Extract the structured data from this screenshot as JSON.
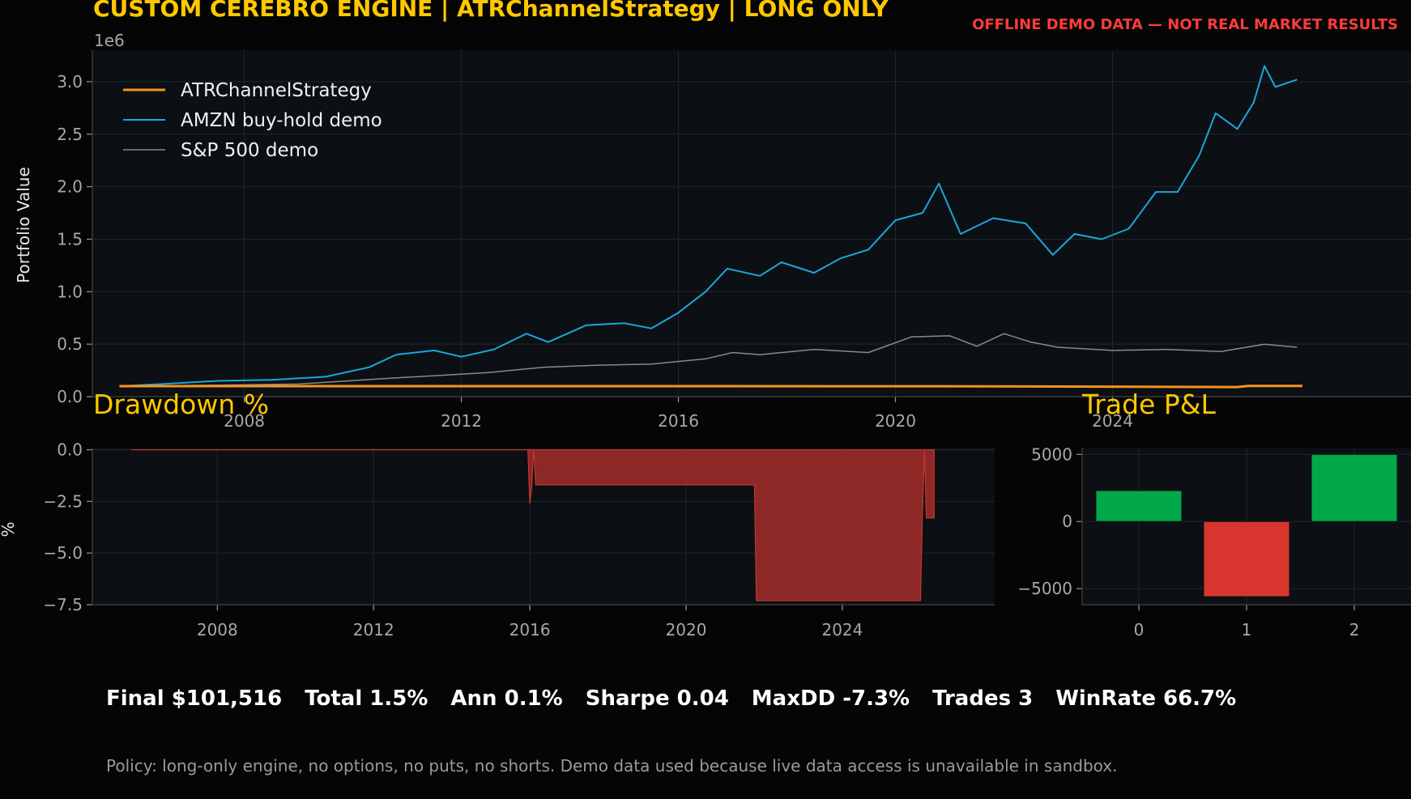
{
  "header": {
    "title": "CUSTOM CEREBRO ENGINE | ATRChannelStrategy | LONG ONLY",
    "warning": "OFFLINE DEMO DATA — NOT REAL MARKET RESULTS"
  },
  "colors": {
    "background": "#050505",
    "plot_bg": "#0c0f14",
    "accent_yellow": "#ffc800",
    "strategy": "#f7931e",
    "amzn": "#1aa7db",
    "sp500": "#8a8a8a",
    "drawdown": "#962a28",
    "profit": "#00a84a",
    "loss": "#d8352e",
    "warning": "#ff3b3b"
  },
  "chart_data": [
    {
      "type": "line",
      "ylabel": "Portfolio Value",
      "yscale_label": "1e6",
      "ylim": [
        0,
        3.3
      ],
      "xlim": [
        2005.2,
        2029.5
      ],
      "yticks": [
        "0.0",
        "0.5",
        "1.0",
        "1.5",
        "2.0",
        "2.5",
        "3.0"
      ],
      "xticks": [
        "2008",
        "2012",
        "2016",
        "2020",
        "2024"
      ],
      "grid": true,
      "legend": "top-left",
      "series": [
        {
          "name": "ATRChannelStrategy",
          "x": [
            2005.7,
            2016.0,
            2021.7,
            2026.3,
            2026.5,
            2027.5
          ],
          "y": [
            0.1,
            0.1,
            0.099,
            0.092,
            0.102,
            0.1015
          ]
        },
        {
          "name": "AMZN buy-hold demo",
          "x": [
            2005.7,
            2006.5,
            2007.5,
            2008.5,
            2009.5,
            2010.3,
            2010.8,
            2011.5,
            2012.0,
            2012.6,
            2013.2,
            2013.6,
            2014.3,
            2015.0,
            2015.5,
            2016.0,
            2016.5,
            2016.9,
            2017.5,
            2017.9,
            2018.5,
            2019.0,
            2019.5,
            2020.0,
            2020.5,
            2020.8,
            2021.2,
            2021.8,
            2022.4,
            2022.9,
            2023.3,
            2023.8,
            2024.3,
            2024.8,
            2025.2,
            2025.6,
            2025.9,
            2026.3,
            2026.6,
            2026.8,
            2027.0,
            2027.4
          ],
          "y": [
            0.1,
            0.12,
            0.15,
            0.16,
            0.19,
            0.28,
            0.4,
            0.44,
            0.38,
            0.45,
            0.6,
            0.52,
            0.68,
            0.7,
            0.65,
            0.8,
            1.0,
            1.22,
            1.15,
            1.28,
            1.18,
            1.32,
            1.4,
            1.68,
            1.75,
            2.03,
            1.55,
            1.7,
            1.65,
            1.35,
            1.55,
            1.5,
            1.6,
            1.95,
            1.95,
            2.3,
            2.7,
            2.55,
            2.8,
            3.15,
            2.95,
            3.02
          ]
        },
        {
          "name": "S&P 500 demo",
          "x": [
            2005.7,
            2007.5,
            2009.0,
            2010.5,
            2011.5,
            2012.5,
            2013.5,
            2014.5,
            2015.5,
            2016.5,
            2017.0,
            2017.5,
            2018.5,
            2019.5,
            2020.3,
            2021.0,
            2021.5,
            2022.0,
            2022.5,
            2023.0,
            2024.0,
            2025.0,
            2026.0,
            2026.8,
            2027.4
          ],
          "y": [
            0.1,
            0.11,
            0.12,
            0.17,
            0.2,
            0.23,
            0.28,
            0.3,
            0.31,
            0.36,
            0.42,
            0.4,
            0.45,
            0.42,
            0.57,
            0.58,
            0.48,
            0.6,
            0.52,
            0.47,
            0.44,
            0.45,
            0.43,
            0.5,
            0.47
          ]
        }
      ]
    },
    {
      "type": "area",
      "title": "Drawdown %",
      "ylabel": "%",
      "ylim": [
        -7.5,
        0.1
      ],
      "xlim": [
        2004.8,
        2027.9
      ],
      "yticks": [
        "0.0",
        "−2.5",
        "−5.0",
        "−7.5"
      ],
      "xticks": [
        "2008",
        "2012",
        "2016",
        "2020",
        "2024"
      ],
      "grid": true,
      "series": [
        {
          "name": "Drawdown",
          "x": [
            2005.8,
            2015.95,
            2016.0,
            2016.05,
            2016.1,
            2016.15,
            2016.2,
            2021.75,
            2021.8,
            2026.0,
            2026.05,
            2026.1,
            2026.15,
            2026.25,
            2026.35
          ],
          "y": [
            0.0,
            0.0,
            -2.6,
            -1.8,
            0.0,
            -1.7,
            -1.7,
            -1.7,
            -7.3,
            -7.3,
            -3.2,
            0.0,
            -3.3,
            -3.3,
            -3.3
          ]
        }
      ]
    },
    {
      "type": "bar",
      "title": "Trade P&L",
      "categories": [
        "0",
        "1",
        "2"
      ],
      "values": [
        2300,
        -5600,
        5000
      ],
      "ylim": [
        -6200,
        5500
      ],
      "yticks": [
        "5000",
        "0",
        "−5000"
      ],
      "grid": true
    }
  ],
  "stats": {
    "final": "Final $101,516",
    "total": "Total 1.5%",
    "ann": "Ann 0.1%",
    "sharpe": "Sharpe 0.04",
    "maxdd": "MaxDD -7.3%",
    "trades": "Trades 3",
    "winrate": "WinRate 66.7%"
  },
  "policy": "Policy: long-only engine, no options, no puts, no shorts. Demo data used because live data access is unavailable in sandbox."
}
